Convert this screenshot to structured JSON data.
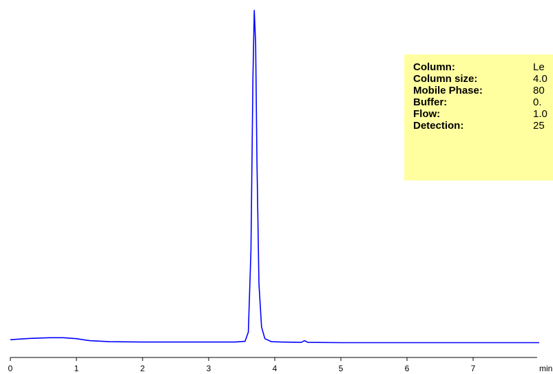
{
  "chart_data": {
    "type": "line",
    "title": "",
    "xlabel": "",
    "ylabel": "",
    "x_unit": "min",
    "xlim": [
      0,
      8
    ],
    "ylim": [
      0,
      100
    ],
    "x_ticks": [
      0,
      1,
      2,
      3,
      4,
      5,
      6,
      7
    ],
    "grid": false,
    "line_color": "#0000ff",
    "series": [
      {
        "x": [
          0,
          0.3,
          0.6,
          0.8,
          1.0,
          1.2,
          1.5,
          2.0,
          2.5,
          3.0,
          3.4,
          3.55,
          3.6,
          3.64,
          3.67,
          3.69,
          3.71,
          3.73,
          3.76,
          3.8,
          3.85,
          3.95,
          4.1,
          4.4,
          4.45,
          4.5,
          5.0,
          5.5,
          6.0,
          6.5,
          7.0,
          7.5,
          8.0
        ],
        "y": [
          1.2,
          1.6,
          1.8,
          1.8,
          1.5,
          0.9,
          0.6,
          0.5,
          0.5,
          0.5,
          0.5,
          0.7,
          3.5,
          28,
          80,
          100,
          90,
          55,
          18,
          5,
          1.5,
          0.6,
          0.5,
          0.4,
          0.9,
          0.4,
          0.3,
          0.3,
          0.3,
          0.3,
          0.3,
          0.3,
          0.3
        ]
      }
    ]
  },
  "conditions": {
    "rows": [
      {
        "label": "Column:",
        "value": "Le"
      },
      {
        "label": "Column size:",
        "value": "4.0"
      },
      {
        "label": "Mobile Phase:",
        "value": "80"
      },
      {
        "label": "Buffer:",
        "value": "0."
      },
      {
        "label": "Flow:",
        "value": "1.0"
      },
      {
        "label": "Detection:",
        "value": "25"
      }
    ],
    "background": "#ffffa0"
  }
}
